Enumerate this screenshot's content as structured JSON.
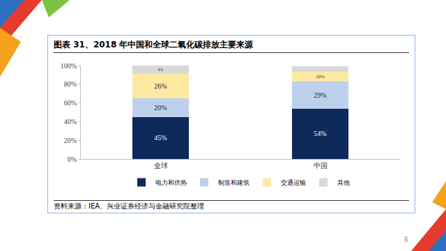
{
  "chart_data": {
    "type": "bar",
    "title": "图表 31、2018 年中国和全球二氧化碳排放主要来源",
    "categories": [
      "全球",
      "中国"
    ],
    "series": [
      {
        "name": "电力和供热",
        "color": "#0e2a5a",
        "values": [
          45,
          54
        ],
        "value_labels": [
          "45%",
          "54%"
        ]
      },
      {
        "name": "制造和建筑",
        "color": "#bdd1ec",
        "values": [
          20,
          29
        ],
        "value_labels": [
          "20%",
          "29%"
        ]
      },
      {
        "name": "交通运输",
        "color": "#fde9a2",
        "values": [
          26,
          10
        ],
        "value_labels": [
          "26%",
          "10%"
        ]
      },
      {
        "name": "其他",
        "color": "#d9d9d9",
        "values": [
          9,
          6
        ],
        "value_labels": [
          "9%",
          "6%"
        ]
      }
    ],
    "ylim": [
      0,
      100
    ],
    "yticks": [
      {
        "value": 0,
        "label": "0%"
      },
      {
        "value": 20,
        "label": "20%"
      },
      {
        "value": 40,
        "label": "40%"
      },
      {
        "value": 60,
        "label": "60%"
      },
      {
        "value": 80,
        "label": "80%"
      },
      {
        "value": 100,
        "label": "100%"
      }
    ],
    "stacked": true,
    "data_labels": true,
    "grid": false,
    "legend": "bottom",
    "source": "资料来源：IEA、兴业证券经济与金融研究院整理"
  },
  "page_number": "6"
}
